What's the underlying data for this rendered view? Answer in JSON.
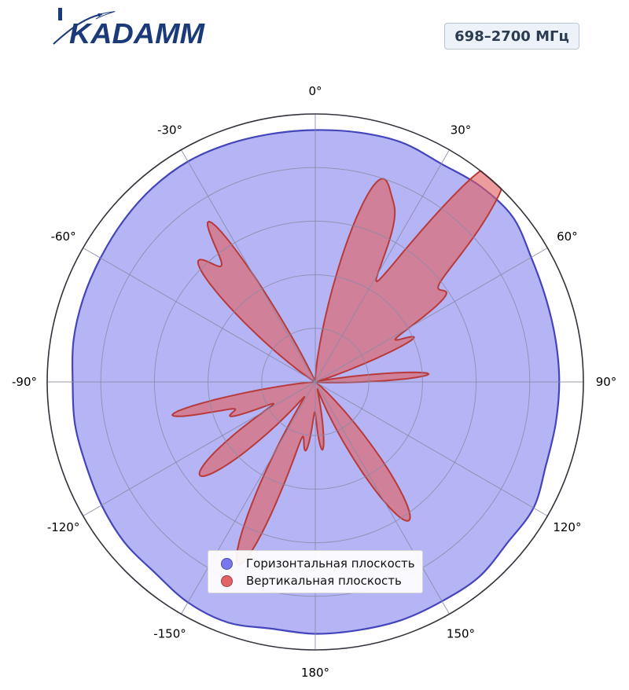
{
  "brand": {
    "logo_text": "KADAMM",
    "logo_color": "#1b3a7a"
  },
  "badge": {
    "label": "698–2700 МГц"
  },
  "chart_data": {
    "type": "polar",
    "theta_zero": "top",
    "theta_direction": "clockwise",
    "angle_tick_labels": [
      "0°",
      "30°",
      "60°",
      "90°",
      "120°",
      "150°",
      "180°",
      "-150°",
      "-120°",
      "-90°",
      "-60°",
      "-30°"
    ],
    "angle_ticks": [
      0,
      30,
      60,
      90,
      120,
      150,
      180,
      -150,
      -120,
      -90,
      -60,
      -30
    ],
    "radial_range": [
      0,
      1
    ],
    "radial_gridlines": [
      0.2,
      0.4,
      0.6,
      0.8
    ],
    "radial_tick_labels": false,
    "grid": true,
    "legend_position": "bottom-center",
    "series": [
      {
        "name": "Горизонтальная плоскость",
        "color": "#7272ee",
        "edge_color": "#4444bb",
        "points": [
          [
            0,
            0.94
          ],
          [
            10,
            0.945
          ],
          [
            20,
            0.95
          ],
          [
            30,
            0.94
          ],
          [
            40,
            0.955
          ],
          [
            50,
            0.96
          ],
          [
            60,
            0.93
          ],
          [
            70,
            0.915
          ],
          [
            80,
            0.91
          ],
          [
            90,
            0.91
          ],
          [
            100,
            0.91
          ],
          [
            110,
            0.915
          ],
          [
            120,
            0.94
          ],
          [
            130,
            0.935
          ],
          [
            140,
            0.95
          ],
          [
            150,
            0.945
          ],
          [
            160,
            0.945
          ],
          [
            170,
            0.94
          ],
          [
            180,
            0.94
          ],
          [
            190,
            0.935
          ],
          [
            200,
            0.955
          ],
          [
            210,
            0.95
          ],
          [
            220,
            0.93
          ],
          [
            230,
            0.93
          ],
          [
            240,
            0.92
          ],
          [
            250,
            0.91
          ],
          [
            260,
            0.91
          ],
          [
            270,
            0.905
          ],
          [
            280,
            0.915
          ],
          [
            290,
            0.92
          ],
          [
            300,
            0.925
          ],
          [
            310,
            0.935
          ],
          [
            320,
            0.945
          ],
          [
            330,
            0.95
          ],
          [
            340,
            0.945
          ],
          [
            350,
            0.94
          ]
        ]
      },
      {
        "name": "Вертикальная плоскость",
        "color": "#e06060",
        "edge_color": "#b83a3a",
        "lobes": [
          {
            "angle": 18,
            "magnitude": 0.78,
            "width": 6
          },
          {
            "angle": 27,
            "magnitude": 0.35,
            "width": 3.5
          },
          {
            "angle": 38,
            "magnitude": 0.58,
            "width": 4
          },
          {
            "angle": 45,
            "magnitude": 0.82,
            "width": 6
          },
          {
            "angle": 57,
            "magnitude": 0.45,
            "width": 3.5
          },
          {
            "angle": 66,
            "magnitude": 0.38,
            "width": 3
          },
          {
            "angle": 86,
            "magnitude": 0.42,
            "width": 3
          },
          {
            "angle": 146,
            "magnitude": 0.62,
            "width": 6.5
          },
          {
            "angle": 174,
            "magnitude": 0.25,
            "width": 4
          },
          {
            "angle": 188,
            "magnitude": 0.25,
            "width": 4
          },
          {
            "angle": 200,
            "magnitude": 0.35,
            "width": 4
          },
          {
            "angle": 205,
            "magnitude": 0.52,
            "width": 4.5
          },
          {
            "angle": 231,
            "magnitude": 0.55,
            "width": 6.5
          },
          {
            "angle": 248,
            "magnitude": 0.3,
            "width": 3
          },
          {
            "angle": 257,
            "magnitude": 0.54,
            "width": 3.5
          },
          {
            "angle": 316,
            "magnitude": 0.62,
            "width": 5.5
          },
          {
            "angle": 327,
            "magnitude": 0.62,
            "width": 3.5
          }
        ]
      }
    ]
  },
  "legend": {
    "items": [
      {
        "label": "Горизонтальная плоскость",
        "color": "#7878ee",
        "edge": "#4a4ab0"
      },
      {
        "label": "Вертикальная плоскость",
        "color": "#e26464",
        "edge": "#a83a3a"
      }
    ]
  }
}
